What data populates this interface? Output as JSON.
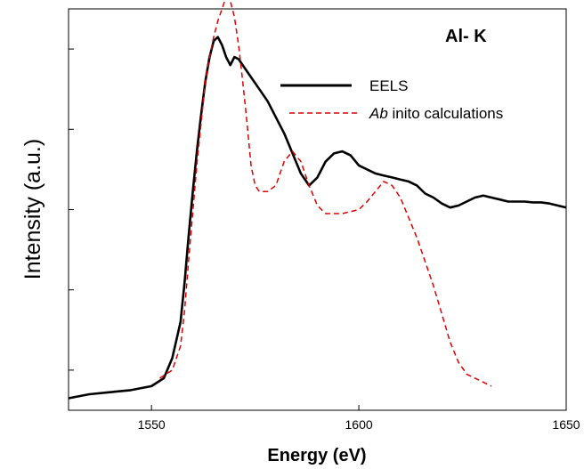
{
  "chart_data": {
    "type": "line",
    "xlabel": "Energy (eV)",
    "ylabel": "Intensity (a.u.)",
    "annotation": "Al- K",
    "xlim": [
      1530,
      1650
    ],
    "ylim": [
      0,
      1
    ],
    "x_ticks": [
      1550,
      1600,
      1650
    ],
    "y_ticks_unlabeled": [
      0.1,
      0.3,
      0.5,
      0.7,
      0.9
    ],
    "grid": false,
    "legend_position": "top-right",
    "series": [
      {
        "name": "EELS",
        "name_italic_prefix": "",
        "name_rest": "EELS",
        "color": "#000000",
        "dash": "solid",
        "x": [
          1530,
          1535,
          1540,
          1545,
          1550,
          1553,
          1555,
          1557,
          1558,
          1559,
          1560,
          1561,
          1562,
          1563,
          1564,
          1565,
          1566,
          1567,
          1568,
          1569,
          1570,
          1571,
          1572,
          1574,
          1576,
          1578,
          1580,
          1582,
          1584,
          1586,
          1588,
          1590,
          1592,
          1594,
          1596,
          1598,
          1600,
          1602,
          1604,
          1606,
          1608,
          1610,
          1612,
          1614,
          1616,
          1618,
          1620,
          1622,
          1624,
          1626,
          1628,
          1630,
          1632,
          1634,
          1636,
          1638,
          1640,
          1642,
          1644,
          1646,
          1648,
          1650
        ],
        "y": [
          0.03,
          0.04,
          0.045,
          0.05,
          0.06,
          0.08,
          0.13,
          0.22,
          0.32,
          0.44,
          0.55,
          0.65,
          0.74,
          0.82,
          0.88,
          0.92,
          0.93,
          0.91,
          0.88,
          0.86,
          0.88,
          0.875,
          0.86,
          0.83,
          0.8,
          0.77,
          0.73,
          0.69,
          0.64,
          0.59,
          0.56,
          0.58,
          0.62,
          0.64,
          0.645,
          0.635,
          0.61,
          0.6,
          0.59,
          0.585,
          0.58,
          0.575,
          0.57,
          0.56,
          0.54,
          0.53,
          0.515,
          0.505,
          0.51,
          0.52,
          0.53,
          0.535,
          0.53,
          0.525,
          0.52,
          0.52,
          0.52,
          0.518,
          0.518,
          0.515,
          0.51,
          0.505
        ]
      },
      {
        "name": "Ab inito calculations",
        "name_italic_prefix": "Ab",
        "name_rest": " inito calculations",
        "color": "#dd0000",
        "dash": "6,4",
        "x": [
          1552,
          1555,
          1557,
          1558,
          1559,
          1560,
          1561,
          1562,
          1563,
          1564,
          1565,
          1566,
          1567,
          1568,
          1569,
          1570,
          1571,
          1572,
          1573,
          1574,
          1575,
          1576,
          1578,
          1580,
          1582,
          1584,
          1586,
          1588,
          1590,
          1592,
          1594,
          1596,
          1598,
          1600,
          1602,
          1604,
          1606,
          1608,
          1610,
          1612,
          1614,
          1616,
          1618,
          1620,
          1622,
          1624,
          1626,
          1628,
          1630,
          1632
        ],
        "y": [
          0.08,
          0.1,
          0.16,
          0.25,
          0.38,
          0.5,
          0.62,
          0.72,
          0.82,
          0.88,
          0.93,
          0.97,
          1.0,
          1.03,
          1.02,
          0.98,
          0.91,
          0.82,
          0.72,
          0.61,
          0.56,
          0.545,
          0.545,
          0.56,
          0.62,
          0.645,
          0.62,
          0.56,
          0.51,
          0.49,
          0.49,
          0.49,
          0.495,
          0.5,
          0.52,
          0.545,
          0.57,
          0.56,
          0.53,
          0.48,
          0.43,
          0.37,
          0.31,
          0.24,
          0.17,
          0.12,
          0.09,
          0.08,
          0.07,
          0.06
        ]
      }
    ]
  }
}
